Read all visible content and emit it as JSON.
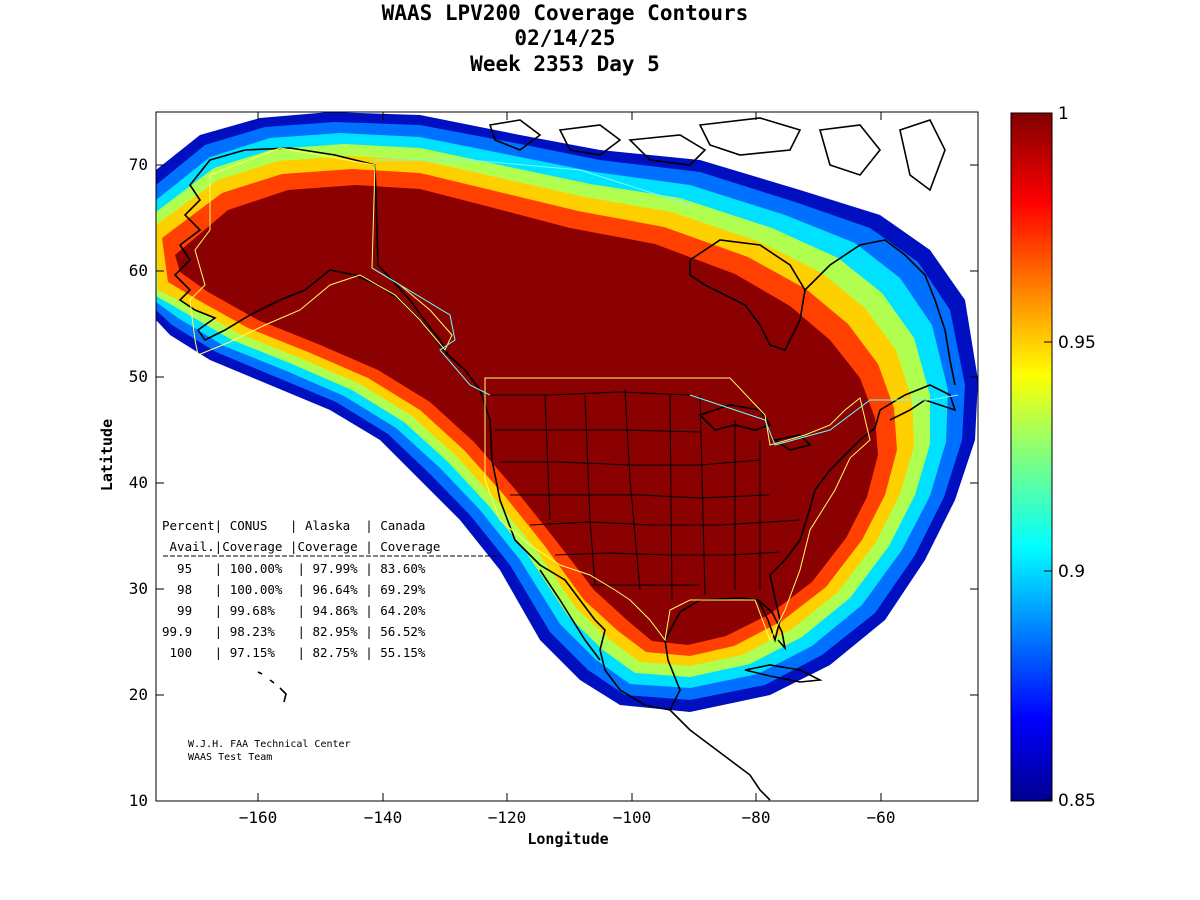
{
  "title": {
    "line1": "WAAS LPV200 Coverage Contours",
    "line2": "02/14/25",
    "line3": "Week 2353 Day 5"
  },
  "axes": {
    "xlabel": "Longitude",
    "ylabel": "Latitude",
    "xlim": [
      -175,
      -50
    ],
    "ylim": [
      10,
      75
    ],
    "xticks": [
      -160,
      -140,
      -120,
      -100,
      -80,
      -60
    ],
    "yticks": [
      10,
      20,
      30,
      40,
      50,
      60,
      70
    ],
    "xtick_labels": [
      "−160",
      "−140",
      "−120",
      "−100",
      "−80",
      "−60"
    ],
    "ytick_labels": [
      "10",
      "20",
      "30",
      "40",
      "50",
      "60",
      "70"
    ]
  },
  "colorbar": {
    "min": 0.85,
    "max": 1,
    "ticks": [
      1,
      0.95,
      0.9,
      0.85
    ],
    "tick_labels": [
      "1",
      "0.95",
      "0.9",
      "0.85"
    ],
    "colormap": "jet"
  },
  "table": {
    "header1": "Percent| CONUS   | Alaska  | Canada",
    "header2": " Avail.|Coverage |Coverage | Coverage",
    "rows": [
      "  95   | 100.00%  | 97.99% | 83.60%",
      "  98   | 100.00%  | 96.64% | 69.29%",
      "  99   | 99.68%   | 94.86% | 64.20%",
      "99.9   | 98.23%   | 82.95% | 56.52%",
      " 100   | 97.15%   | 82.75% | 55.15%"
    ]
  },
  "credit": {
    "line1": "W.J.H. FAA Technical Center",
    "line2": "WAAS Test Team"
  },
  "chart_data": {
    "type": "heatmap",
    "title": "WAAS LPV200 Coverage Contours",
    "subtitle": [
      "02/14/25",
      "Week 2353 Day 5"
    ],
    "xlabel": "Longitude",
    "ylabel": "Latitude",
    "xlim": [
      -175,
      -50
    ],
    "ylim": [
      10,
      75
    ],
    "value_range": [
      0.85,
      1
    ],
    "coverage_table": {
      "columns": [
        "Percent Avail.",
        "CONUS Coverage",
        "Alaska Coverage",
        "Canada Coverage"
      ],
      "rows": [
        [
          "95",
          "100.00%",
          "97.99%",
          "83.60%"
        ],
        [
          "98",
          "100.00%",
          "96.64%",
          "69.29%"
        ],
        [
          "99",
          "99.68%",
          "94.86%",
          "64.20%"
        ],
        [
          "99.9",
          "98.23%",
          "82.95%",
          "56.52%"
        ],
        [
          "100",
          "97.15%",
          "82.75%",
          "55.15%"
        ]
      ]
    }
  }
}
